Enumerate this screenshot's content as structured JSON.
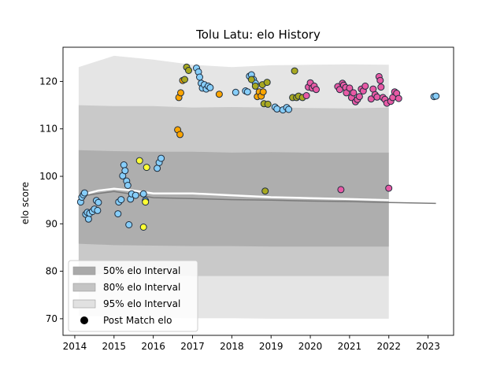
{
  "chart_data": {
    "type": "scatter",
    "title": "Tolu Latu: elo History",
    "xlabel": "",
    "ylabel": "elo score",
    "xlim": [
      2013.7,
      2023.65
    ],
    "ylim": [
      66.5,
      127.2
    ],
    "x_ticks": [
      2014,
      2015,
      2016,
      2017,
      2018,
      2019,
      2020,
      2021,
      2022,
      2023
    ],
    "y_ticks": [
      70,
      80,
      90,
      100,
      110,
      120
    ],
    "grid": false,
    "legend": {
      "placement": "lower-left",
      "entries": [
        {
          "label": "50% elo Interval",
          "kind": "patch",
          "color": "#a9a9a9"
        },
        {
          "label": "80% elo Interval",
          "kind": "patch",
          "color": "#c4c4c4"
        },
        {
          "label": "95% elo Interval",
          "kind": "patch",
          "color": "#e1e1e1"
        },
        {
          "label": "Post Match elo",
          "kind": "marker",
          "color": "#000000"
        }
      ]
    },
    "colors": {
      "band_50": "#a9a9a9",
      "band_80": "#c4c4c4",
      "band_95": "#e1e1e1",
      "median_line": "#7a7a7a",
      "mean_line": "#ffffff",
      "point_edge": "#1f2d3d",
      "light_blue": "#87cefa",
      "yellow": "#ffff33",
      "orange": "#ffa500",
      "olive": "#a8a820",
      "pink": "#e75aa5"
    },
    "intervals": {
      "x": [
        2014.1,
        2015.0,
        2016.0,
        2017.0,
        2018.0,
        2019.0,
        2020.0,
        2021.0,
        2022.0
      ],
      "p95_low": [
        70.6,
        70.4,
        70.2,
        70.1,
        70.1,
        70.0,
        70.0,
        70.0,
        70.0
      ],
      "p95_high": [
        123.0,
        125.4,
        124.6,
        123.5,
        123.0,
        123.4,
        123.5,
        123.6,
        123.5
      ],
      "p80_low": [
        79.5,
        79.3,
        79.2,
        79.0,
        79.0,
        79.0,
        79.0,
        79.0,
        79.0
      ],
      "p80_high": [
        115.0,
        114.8,
        114.8,
        114.5,
        114.6,
        114.5,
        114.4,
        114.3,
        114.5
      ],
      "p50_low": [
        85.8,
        85.5,
        85.4,
        85.3,
        85.3,
        85.2,
        85.2,
        85.2,
        85.2
      ],
      "p50_high": [
        105.5,
        105.3,
        105.2,
        105.2,
        105.0,
        105.1,
        105.0,
        105.0,
        105.0
      ],
      "median_x": [
        2014.1,
        2014.6,
        2015.0,
        2015.5,
        2016.0,
        2017.0,
        2018.0,
        2019.0,
        2020.0,
        2021.0,
        2022.0,
        2023.2
      ],
      "median_y": [
        95.7,
        96.4,
        96.8,
        96.2,
        95.5,
        95.3,
        95.1,
        95.0,
        94.8,
        94.7,
        94.5,
        94.3
      ],
      "mean_x": [
        2014.1,
        2014.6,
        2015.0,
        2015.5,
        2016.0,
        2017.0,
        2018.0,
        2019.0,
        2020.0,
        2021.0,
        2022.0
      ],
      "mean_y": [
        95.9,
        97.0,
        97.4,
        97.0,
        96.4,
        96.4,
        96.0,
        95.6,
        95.4,
        95.2,
        95.0
      ]
    },
    "series": [
      {
        "color": "light_blue",
        "points": [
          [
            2014.15,
            94.6
          ],
          [
            2014.18,
            95.6
          ],
          [
            2014.22,
            96.1
          ],
          [
            2014.25,
            96.5
          ],
          [
            2014.28,
            92.0
          ],
          [
            2014.32,
            92.4
          ],
          [
            2014.35,
            91.0
          ],
          [
            2014.38,
            92.2
          ],
          [
            2014.45,
            92.6
          ],
          [
            2014.5,
            93.1
          ],
          [
            2014.55,
            94.9
          ],
          [
            2014.58,
            92.8
          ],
          [
            2014.6,
            94.5
          ],
          [
            2015.1,
            92.1
          ],
          [
            2015.12,
            94.6
          ],
          [
            2015.18,
            95.1
          ],
          [
            2015.22,
            100.1
          ],
          [
            2015.25,
            102.4
          ],
          [
            2015.28,
            101.2
          ],
          [
            2015.32,
            99.0
          ],
          [
            2015.35,
            98.1
          ],
          [
            2015.38,
            89.8
          ],
          [
            2015.42,
            95.2
          ],
          [
            2015.45,
            96.3
          ],
          [
            2015.55,
            96.0
          ],
          [
            2015.75,
            96.3
          ],
          [
            2015.8,
            94.9
          ],
          [
            2016.1,
            101.7
          ],
          [
            2016.15,
            102.9
          ],
          [
            2016.2,
            103.8
          ],
          [
            2017.1,
            122.8
          ],
          [
            2017.15,
            122.0
          ],
          [
            2017.18,
            120.9
          ],
          [
            2017.22,
            119.6
          ],
          [
            2017.25,
            118.6
          ],
          [
            2017.3,
            119.3
          ],
          [
            2017.35,
            118.4
          ],
          [
            2017.4,
            119.0
          ],
          [
            2017.45,
            118.7
          ],
          [
            2018.1,
            117.7
          ],
          [
            2018.35,
            118.0
          ],
          [
            2018.4,
            117.8
          ],
          [
            2018.45,
            121.1
          ],
          [
            2018.5,
            121.4
          ],
          [
            2018.55,
            120.4
          ],
          [
            2018.6,
            119.6
          ],
          [
            2019.1,
            114.6
          ],
          [
            2019.15,
            114.2
          ],
          [
            2019.3,
            114.0
          ],
          [
            2019.4,
            114.5
          ],
          [
            2019.45,
            114.1
          ],
          [
            2023.15,
            116.8
          ],
          [
            2023.2,
            116.9
          ]
        ]
      },
      {
        "color": "yellow",
        "points": [
          [
            2015.65,
            103.3
          ],
          [
            2015.75,
            89.3
          ],
          [
            2015.8,
            94.6
          ],
          [
            2015.83,
            101.9
          ]
        ]
      },
      {
        "color": "orange",
        "points": [
          [
            2016.62,
            109.8
          ],
          [
            2016.65,
            116.6
          ],
          [
            2016.68,
            108.8
          ],
          [
            2016.7,
            117.6
          ],
          [
            2016.75,
            120.2
          ],
          [
            2017.68,
            117.3
          ],
          [
            2018.65,
            116.8
          ],
          [
            2018.7,
            117.8
          ],
          [
            2018.75,
            116.9
          ],
          [
            2018.8,
            117.8
          ]
        ]
      },
      {
        "color": "olive",
        "points": [
          [
            2016.8,
            120.4
          ],
          [
            2016.85,
            123.0
          ],
          [
            2016.9,
            122.3
          ],
          [
            2018.5,
            120.4
          ],
          [
            2018.6,
            119.0
          ],
          [
            2018.78,
            119.3
          ],
          [
            2018.82,
            115.3
          ],
          [
            2018.85,
            96.9
          ],
          [
            2018.9,
            119.8
          ],
          [
            2018.92,
            115.2
          ],
          [
            2019.55,
            116.6
          ],
          [
            2019.6,
            122.2
          ],
          [
            2019.65,
            116.6
          ],
          [
            2019.7,
            116.9
          ],
          [
            2019.8,
            116.6
          ]
        ]
      },
      {
        "color": "pink",
        "points": [
          [
            2019.9,
            117.0
          ],
          [
            2019.95,
            118.8
          ],
          [
            2020.0,
            119.7
          ],
          [
            2020.05,
            118.6
          ],
          [
            2020.1,
            119.0
          ],
          [
            2020.15,
            118.3
          ],
          [
            2020.7,
            118.9
          ],
          [
            2020.75,
            118.3
          ],
          [
            2020.78,
            97.2
          ],
          [
            2020.82,
            119.6
          ],
          [
            2020.85,
            119.2
          ],
          [
            2020.9,
            118.7
          ],
          [
            2020.92,
            117.6
          ],
          [
            2021.0,
            118.6
          ],
          [
            2021.05,
            116.6
          ],
          [
            2021.1,
            117.6
          ],
          [
            2021.15,
            115.7
          ],
          [
            2021.2,
            116.2
          ],
          [
            2021.25,
            116.8
          ],
          [
            2021.3,
            118.4
          ],
          [
            2021.35,
            118.0
          ],
          [
            2021.4,
            119.0
          ],
          [
            2021.55,
            116.3
          ],
          [
            2021.6,
            118.4
          ],
          [
            2021.65,
            117.2
          ],
          [
            2021.7,
            116.7
          ],
          [
            2021.75,
            121.0
          ],
          [
            2021.78,
            120.2
          ],
          [
            2021.8,
            118.8
          ],
          [
            2021.85,
            116.6
          ],
          [
            2021.9,
            116.2
          ],
          [
            2021.95,
            115.4
          ],
          [
            2022.0,
            97.5
          ],
          [
            2022.05,
            115.8
          ],
          [
            2022.1,
            116.6
          ],
          [
            2022.15,
            117.8
          ],
          [
            2022.2,
            117.5
          ],
          [
            2022.25,
            116.4
          ]
        ]
      }
    ]
  }
}
